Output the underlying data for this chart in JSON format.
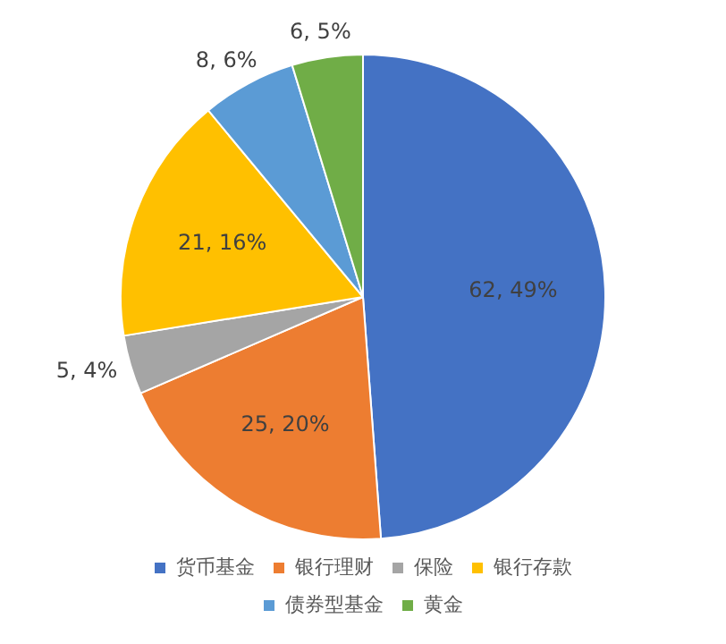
{
  "chart_data": {
    "type": "pie",
    "categories": [
      "货币基金",
      "银行理财",
      "保险",
      "银行存款",
      "债券型基金",
      "黄金"
    ],
    "values": [
      62,
      25,
      5,
      21,
      8,
      6
    ],
    "colors": [
      "#4472c4",
      "#ed7d31",
      "#a5a5a5",
      "#ffc000",
      "#5b9bd5",
      "#70ad47"
    ],
    "value_labels": [
      "62, 49%",
      "25, 20%",
      "5, 4%",
      "21, 16%",
      "8, 6%",
      "6, 5%"
    ],
    "legend": "bottom"
  }
}
